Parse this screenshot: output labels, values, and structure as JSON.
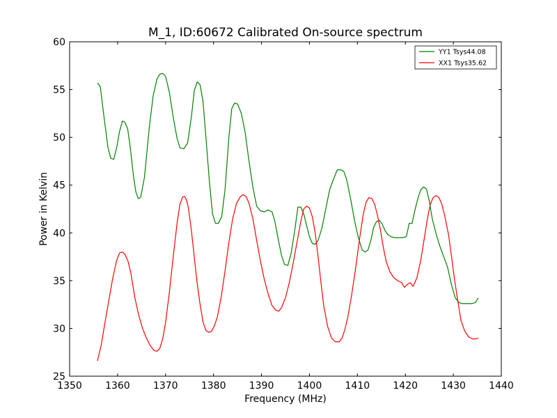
{
  "chart_data": {
    "type": "line",
    "title": "M_1, ID:60672 Calibrated On-source spectrum",
    "xlabel": "Frequency (MHz)",
    "ylabel": "Power in Kelvin",
    "xlim": [
      1350,
      1440
    ],
    "ylim": [
      25,
      60
    ],
    "xticks": [
      1350,
      1360,
      1370,
      1380,
      1390,
      1400,
      1410,
      1420,
      1430,
      1440
    ],
    "yticks": [
      25,
      30,
      35,
      40,
      45,
      50,
      55,
      60
    ],
    "grid": false,
    "legend_position": "top-right",
    "series": [
      {
        "name": "YY1 Tsys44.08",
        "color": "#008000",
        "x": [
          1355.8,
          1356.4,
          1357.2,
          1358.0,
          1358.6,
          1359.2,
          1359.8,
          1360.4,
          1361.0,
          1361.5,
          1362.1,
          1362.7,
          1363.3,
          1363.8,
          1364.3,
          1364.8,
          1365.6,
          1366.6,
          1367.4,
          1368.2,
          1368.8,
          1369.4,
          1370.0,
          1370.8,
          1371.6,
          1372.4,
          1373.0,
          1373.8,
          1374.6,
          1375.4,
          1376.0,
          1376.6,
          1377.2,
          1377.8,
          1378.5,
          1379.2,
          1379.8,
          1380.4,
          1381.0,
          1381.7,
          1382.4,
          1383.2,
          1383.8,
          1384.4,
          1385.0,
          1385.8,
          1386.6,
          1387.4,
          1388.2,
          1389.0,
          1389.8,
          1390.6,
          1391.4,
          1392.2,
          1392.8,
          1393.5,
          1394.2,
          1394.8,
          1395.5,
          1396.2,
          1397.0,
          1397.6,
          1398.2,
          1398.8,
          1399.4,
          1400.0,
          1400.6,
          1401.2,
          1401.8,
          1402.6,
          1403.4,
          1404.2,
          1405.0,
          1405.8,
          1406.6,
          1407.2,
          1407.8,
          1408.6,
          1409.4,
          1410.2,
          1411.0,
          1411.6,
          1412.2,
          1412.8,
          1413.4,
          1414.0,
          1414.6,
          1415.2,
          1415.8,
          1416.4,
          1417.0,
          1417.8,
          1418.6,
          1419.4,
          1420.2,
          1420.8,
          1421.4,
          1422.0,
          1422.6,
          1423.2,
          1423.8,
          1424.4,
          1425.0,
          1425.6,
          1426.4,
          1427.2,
          1428.0,
          1428.8,
          1429.6,
          1430.4,
          1431.2,
          1431.8,
          1432.4,
          1433.0,
          1433.8,
          1434.6,
          1435.2
        ],
        "y": [
          55.7,
          55.3,
          52.0,
          48.9,
          47.8,
          47.7,
          48.9,
          50.6,
          51.7,
          51.6,
          50.9,
          48.7,
          46.0,
          44.3,
          43.6,
          43.7,
          45.8,
          51.0,
          54.3,
          56.1,
          56.6,
          56.7,
          56.4,
          54.7,
          52.1,
          49.9,
          48.9,
          48.8,
          49.4,
          52.2,
          54.9,
          55.8,
          55.5,
          53.8,
          49.5,
          45.0,
          42.0,
          41.0,
          41.0,
          41.7,
          44.5,
          50.0,
          53.0,
          53.6,
          53.5,
          52.5,
          50.5,
          47.5,
          44.8,
          42.8,
          42.3,
          42.2,
          42.4,
          42.2,
          41.2,
          39.3,
          37.6,
          36.7,
          36.6,
          37.9,
          40.5,
          42.7,
          42.7,
          42.0,
          40.8,
          39.6,
          38.9,
          38.8,
          39.2,
          40.5,
          42.5,
          44.5,
          45.6,
          46.6,
          46.6,
          46.4,
          45.5,
          43.5,
          41.3,
          39.5,
          38.2,
          38.0,
          38.2,
          39.2,
          40.6,
          41.2,
          41.3,
          40.9,
          40.2,
          39.8,
          39.6,
          39.5,
          39.5,
          39.5,
          39.6,
          41.0,
          41.0,
          42.4,
          43.6,
          44.5,
          44.8,
          44.6,
          43.3,
          41.5,
          39.9,
          38.6,
          37.5,
          36.4,
          34.6,
          33.2,
          32.7,
          32.6,
          32.6,
          32.6,
          32.6,
          32.7,
          33.2
        ]
      },
      {
        "name": "XX1 Tsys35.62",
        "color": "#ff0000",
        "x": [
          1355.8,
          1356.6,
          1357.4,
          1358.2,
          1359.0,
          1359.8,
          1360.4,
          1361.0,
          1361.6,
          1362.2,
          1362.8,
          1363.6,
          1364.4,
          1365.2,
          1366.0,
          1366.8,
          1367.6,
          1368.2,
          1368.8,
          1369.4,
          1370.0,
          1370.8,
          1371.6,
          1372.4,
          1373.0,
          1373.6,
          1374.0,
          1374.4,
          1374.8,
          1375.4,
          1376.0,
          1376.6,
          1377.2,
          1377.8,
          1378.4,
          1379.0,
          1379.6,
          1380.2,
          1380.8,
          1381.6,
          1382.4,
          1383.2,
          1384.0,
          1384.8,
          1385.6,
          1386.2,
          1386.8,
          1387.4,
          1388.2,
          1389.0,
          1389.8,
          1390.6,
          1391.4,
          1392.2,
          1393.0,
          1393.6,
          1394.2,
          1395.0,
          1395.8,
          1396.6,
          1397.4,
          1398.2,
          1398.8,
          1399.4,
          1400.0,
          1400.6,
          1401.2,
          1401.8,
          1402.4,
          1403.0,
          1403.8,
          1404.6,
          1405.4,
          1406.2,
          1406.8,
          1407.4,
          1408.0,
          1408.8,
          1409.6,
          1410.4,
          1411.2,
          1411.8,
          1412.4,
          1413.0,
          1413.6,
          1414.2,
          1414.8,
          1415.4,
          1416.0,
          1416.8,
          1417.6,
          1418.4,
          1419.2,
          1419.8,
          1420.4,
          1421.0,
          1421.6,
          1422.4,
          1423.2,
          1424.0,
          1424.6,
          1425.2,
          1425.8,
          1426.4,
          1427.0,
          1427.6,
          1428.2,
          1429.0,
          1429.6,
          1430.2,
          1430.8,
          1431.6,
          1432.4,
          1433.2,
          1434.0,
          1434.6,
          1435.2
        ],
        "y": [
          26.6,
          28.3,
          30.7,
          33.0,
          35.3,
          37.1,
          37.9,
          38.0,
          37.7,
          37.0,
          35.7,
          33.2,
          31.4,
          30.0,
          29.0,
          28.2,
          27.7,
          27.6,
          27.9,
          28.9,
          30.6,
          33.8,
          37.5,
          41.0,
          43.0,
          43.8,
          43.8,
          43.4,
          42.5,
          40.2,
          37.4,
          34.7,
          32.5,
          30.7,
          29.8,
          29.6,
          29.7,
          30.3,
          31.2,
          33.3,
          36.0,
          39.0,
          41.5,
          43.1,
          43.8,
          44.0,
          43.8,
          43.1,
          41.5,
          39.2,
          37.0,
          35.1,
          33.6,
          32.4,
          31.9,
          31.8,
          32.2,
          33.2,
          34.8,
          36.8,
          39.0,
          41.2,
          42.5,
          42.8,
          42.6,
          41.7,
          40.0,
          37.5,
          34.8,
          32.3,
          30.2,
          29.0,
          28.6,
          28.6,
          29.0,
          29.9,
          31.2,
          33.5,
          36.2,
          39.2,
          41.9,
          43.2,
          43.7,
          43.6,
          43.0,
          41.8,
          40.3,
          38.5,
          37.0,
          35.9,
          35.3,
          35.0,
          34.8,
          34.3,
          34.6,
          34.8,
          34.4,
          35.3,
          37.1,
          39.6,
          41.5,
          43.0,
          43.7,
          43.9,
          43.7,
          43.0,
          41.8,
          39.8,
          37.6,
          35.3,
          33.3,
          30.8,
          29.7,
          29.1,
          28.9,
          28.9,
          29.0
        ]
      }
    ]
  }
}
